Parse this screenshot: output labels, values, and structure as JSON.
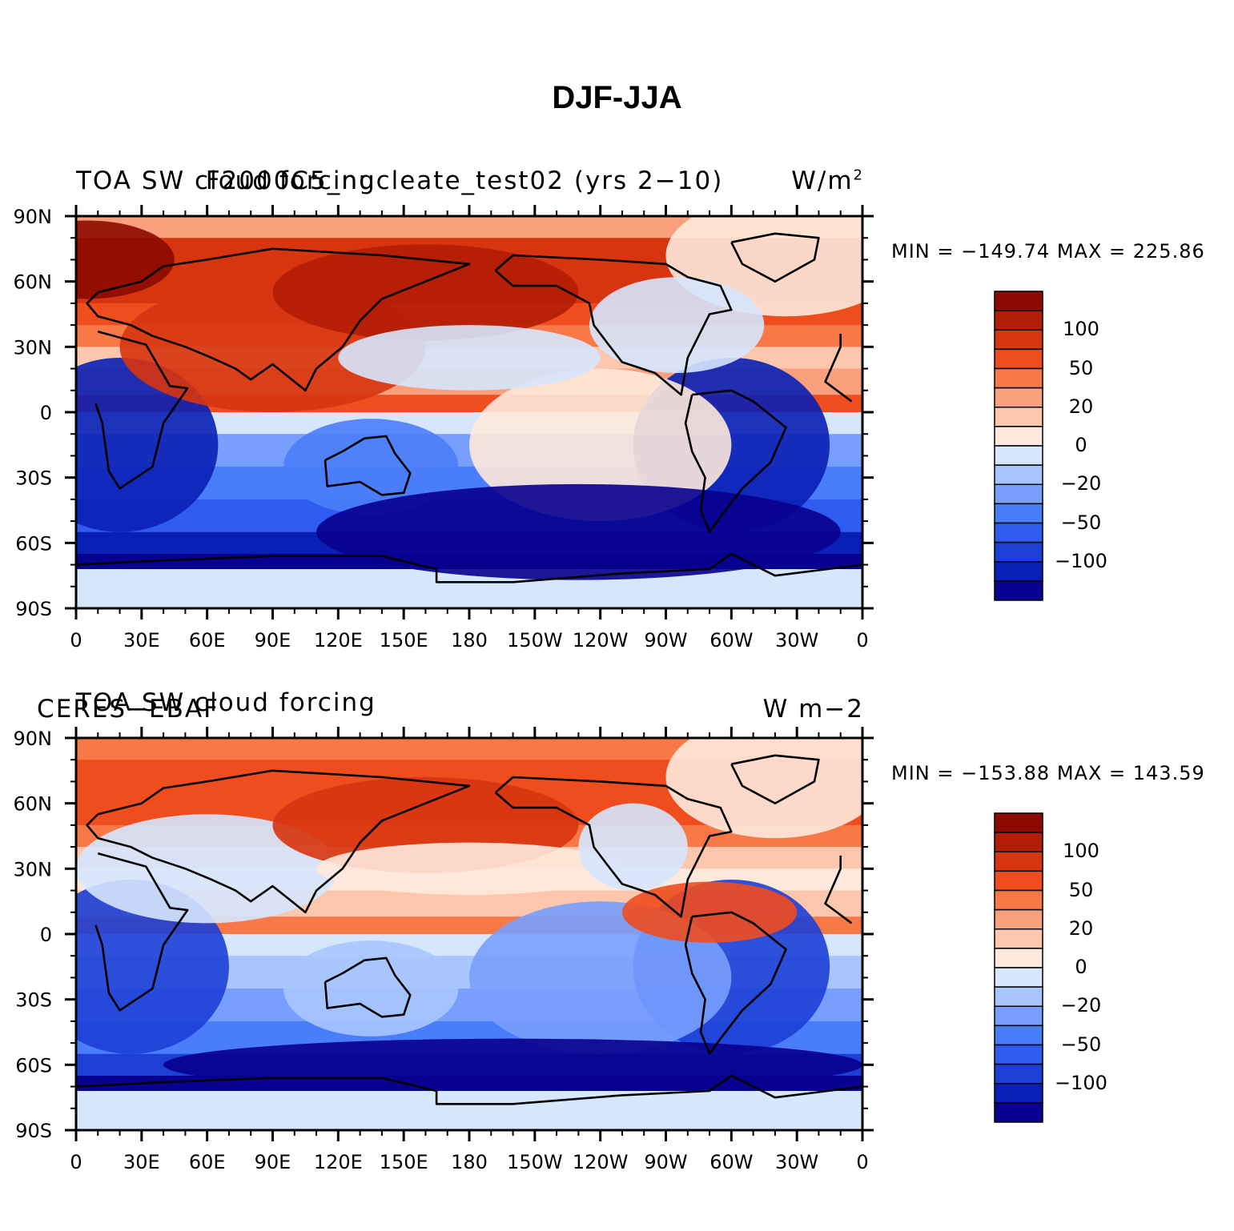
{
  "title": "DJF-JJA",
  "colors": [
    "#08008e",
    "#0a1fb5",
    "#1c3fd6",
    "#2f5cf0",
    "#4a7dfa",
    "#789ffd",
    "#a9c5ff",
    "#d6e6fd",
    "#fee9dc",
    "#fdc7ad",
    "#fba07d",
    "#f97847",
    "#f04d1e",
    "#d73410",
    "#b21d05",
    "#8c0a00"
  ],
  "colorbar_labels": [
    "100",
    "50",
    "20",
    "0",
    "−20",
    "−50",
    "−100"
  ],
  "lat_ticks": [
    "90N",
    "60N",
    "30N",
    "0",
    "30S",
    "60S",
    "90S"
  ],
  "lon_ticks": [
    "0",
    "30E",
    "60E",
    "90E",
    "120E",
    "150E",
    "180",
    "150W",
    "120W",
    "90W",
    "60W",
    "30W",
    "0"
  ],
  "panels": [
    {
      "left_label": "TOA SW cloud forcing",
      "center_label": "F2000C5_nucleate_test02 (yrs 2−10)",
      "units": "W/m",
      "units_sup": "2",
      "minmax": "MIN = −149.74  MAX = 225.86"
    },
    {
      "left_label": "TOA SW cloud forcing",
      "center_label": "CERES−EBAF",
      "units": "W m−2",
      "units_sup": "",
      "minmax": "MIN = −153.88  MAX = 143.59"
    }
  ],
  "chart_data": [
    {
      "type": "heatmap",
      "title": "TOA SW cloud forcing",
      "subtitle": "F2000C5_nucleate_test02 (yrs 2−10)",
      "units": "W/m2",
      "x_ticks": [
        "0",
        "30E",
        "60E",
        "90E",
        "120E",
        "150E",
        "180",
        "150W",
        "120W",
        "90W",
        "60W",
        "30W",
        "0"
      ],
      "y_ticks": [
        "90N",
        "60N",
        "30N",
        "0",
        "30S",
        "60S",
        "90S"
      ],
      "min": -149.74,
      "max": 225.86,
      "levels": [
        -150,
        -120,
        -100,
        -80,
        -60,
        -50,
        -40,
        -20,
        0,
        10,
        20,
        40,
        50,
        60,
        80,
        100,
        120
      ]
    },
    {
      "type": "heatmap",
      "title": "TOA SW cloud forcing",
      "subtitle": "CERES−EBAF",
      "units": "W m−2",
      "x_ticks": [
        "0",
        "30E",
        "60E",
        "90E",
        "120E",
        "150E",
        "180",
        "150W",
        "120W",
        "90W",
        "60W",
        "30W",
        "0"
      ],
      "y_ticks": [
        "90N",
        "60N",
        "30N",
        "0",
        "30S",
        "60S",
        "90S"
      ],
      "min": -153.88,
      "max": 143.59,
      "levels": [
        -150,
        -120,
        -100,
        -80,
        -60,
        -50,
        -40,
        -20,
        0,
        10,
        20,
        40,
        50,
        60,
        80,
        100,
        120
      ]
    }
  ]
}
